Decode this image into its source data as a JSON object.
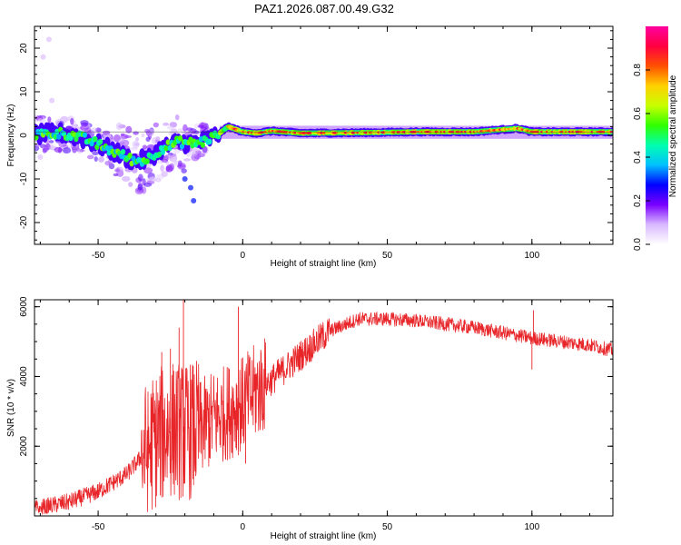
{
  "title": "PAZ1.2026.087.00.49.G32",
  "spectrogram": {
    "type": "heatmap",
    "xlabel": "Height of straight line (km)",
    "ylabel": "Frequency (Hz)",
    "xlim": [
      -72,
      128
    ],
    "ylim": [
      -25,
      25
    ],
    "xticks": [
      -50,
      0,
      50,
      100
    ],
    "yticks": [
      -20,
      -10,
      0,
      10,
      20
    ],
    "colorbar": {
      "label": "Normalized spectral amplitude",
      "range": [
        0,
        1
      ],
      "ticks": [
        "0.0",
        "0.2",
        "0.4",
        "0.6",
        "0.8"
      ],
      "colors": [
        "#ffffff",
        "#d9b8ff",
        "#7a00ff",
        "#0000ff",
        "#00c0ff",
        "#00ffb0",
        "#30ff00",
        "#c8ff00",
        "#ffd000",
        "#ff5000",
        "#ff0040",
        "#ff00a0"
      ]
    },
    "ridge": [
      {
        "x": -70,
        "f": 0.2
      },
      {
        "x": -62,
        "f": 0.5
      },
      {
        "x": -56,
        "f": -0.5
      },
      {
        "x": -52,
        "f": -1.5
      },
      {
        "x": -47,
        "f": -3.0
      },
      {
        "x": -42,
        "f": -4.5
      },
      {
        "x": -37,
        "f": -6.0
      },
      {
        "x": -33,
        "f": -5.5
      },
      {
        "x": -28,
        "f": -3.0
      },
      {
        "x": -22,
        "f": -1.5
      },
      {
        "x": -18,
        "f": -1.8
      },
      {
        "x": -14,
        "f": -1.5
      },
      {
        "x": -9,
        "f": 0.0
      },
      {
        "x": -5,
        "f": 2.0
      },
      {
        "x": 0,
        "f": 0.8
      },
      {
        "x": 5,
        "f": 0.5
      },
      {
        "x": 10,
        "f": 1.0
      },
      {
        "x": 20,
        "f": 0.5
      },
      {
        "x": 40,
        "f": 0.6
      },
      {
        "x": 60,
        "f": 0.8
      },
      {
        "x": 80,
        "f": 0.8
      },
      {
        "x": 95,
        "f": 1.6
      },
      {
        "x": 100,
        "f": 0.8
      },
      {
        "x": 128,
        "f": 0.8
      }
    ]
  },
  "snr": {
    "type": "line",
    "xlabel": "Height of straight line (km)",
    "ylabel": "SNR (10 * v/v)",
    "xlim": [
      -72,
      128
    ],
    "ylim": [
      0,
      6200
    ],
    "xticks": [
      -50,
      0,
      50,
      100
    ],
    "yticks": [
      2000,
      4000,
      6000
    ],
    "color": "#e8262a",
    "trend": [
      {
        "x": -72,
        "y": 200
      },
      {
        "x": -60,
        "y": 400
      },
      {
        "x": -50,
        "y": 700
      },
      {
        "x": -40,
        "y": 1200
      },
      {
        "x": -34,
        "y": 1800
      },
      {
        "x": -30,
        "y": 2200
      },
      {
        "x": -25,
        "y": 2500
      },
      {
        "x": -20,
        "y": 2400
      },
      {
        "x": -15,
        "y": 2500
      },
      {
        "x": -10,
        "y": 2800
      },
      {
        "x": -5,
        "y": 3000
      },
      {
        "x": 0,
        "y": 3200
      },
      {
        "x": 5,
        "y": 3600
      },
      {
        "x": 10,
        "y": 3900
      },
      {
        "x": 20,
        "y": 4600
      },
      {
        "x": 30,
        "y": 5300
      },
      {
        "x": 40,
        "y": 5650
      },
      {
        "x": 50,
        "y": 5650
      },
      {
        "x": 60,
        "y": 5600
      },
      {
        "x": 70,
        "y": 5500
      },
      {
        "x": 80,
        "y": 5400
      },
      {
        "x": 90,
        "y": 5250
      },
      {
        "x": 100,
        "y": 5100
      },
      {
        "x": 110,
        "y": 5000
      },
      {
        "x": 120,
        "y": 4900
      },
      {
        "x": 128,
        "y": 4750
      }
    ],
    "spikes": [
      {
        "x": -20.5,
        "y": 6200
      },
      {
        "x": -22,
        "y": 5400
      },
      {
        "x": -28,
        "y": 4700
      },
      {
        "x": -25,
        "y": 4800
      },
      {
        "x": -1.5,
        "y": 6000
      },
      {
        "x": 1,
        "y": 1500
      },
      {
        "x": 100,
        "y": 4200
      },
      {
        "x": 100.5,
        "y": 5900
      }
    ]
  }
}
